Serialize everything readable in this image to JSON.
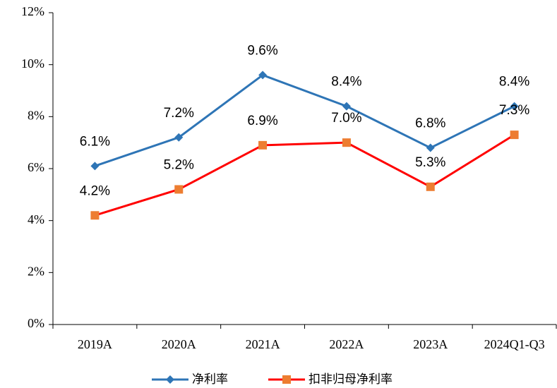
{
  "chart_data": {
    "type": "line",
    "categories": [
      "2019A",
      "2020A",
      "2021A",
      "2022A",
      "2023A",
      "2024Q1-Q3"
    ],
    "series": [
      {
        "name": "净利率",
        "color": "#2E75B6",
        "marker_color": "#2E75B6",
        "marker": "diamond",
        "values": [
          6.1,
          7.2,
          9.6,
          8.4,
          6.8,
          8.4
        ],
        "value_labels": [
          "6.1%",
          "7.2%",
          "9.6%",
          "8.4%",
          "6.8%",
          "8.4%"
        ]
      },
      {
        "name": "扣非归母净利率",
        "color": "#FF0000",
        "marker_color": "#ED7D31",
        "marker": "square",
        "values": [
          4.2,
          5.2,
          6.9,
          7.0,
          5.3,
          7.3
        ],
        "value_labels": [
          "4.2%",
          "5.2%",
          "6.9%",
          "7.0%",
          "5.3%",
          "7.3%"
        ]
      }
    ],
    "ylim": [
      0,
      12
    ],
    "yticks": [
      {
        "value": 0,
        "label": "0%"
      },
      {
        "value": 2,
        "label": "2%"
      },
      {
        "value": 4,
        "label": "4%"
      },
      {
        "value": 6,
        "label": "6%"
      },
      {
        "value": 8,
        "label": "8%"
      },
      {
        "value": 10,
        "label": "10%"
      },
      {
        "value": 12,
        "label": "12%"
      }
    ],
    "grid": false,
    "legend": "bottom"
  }
}
